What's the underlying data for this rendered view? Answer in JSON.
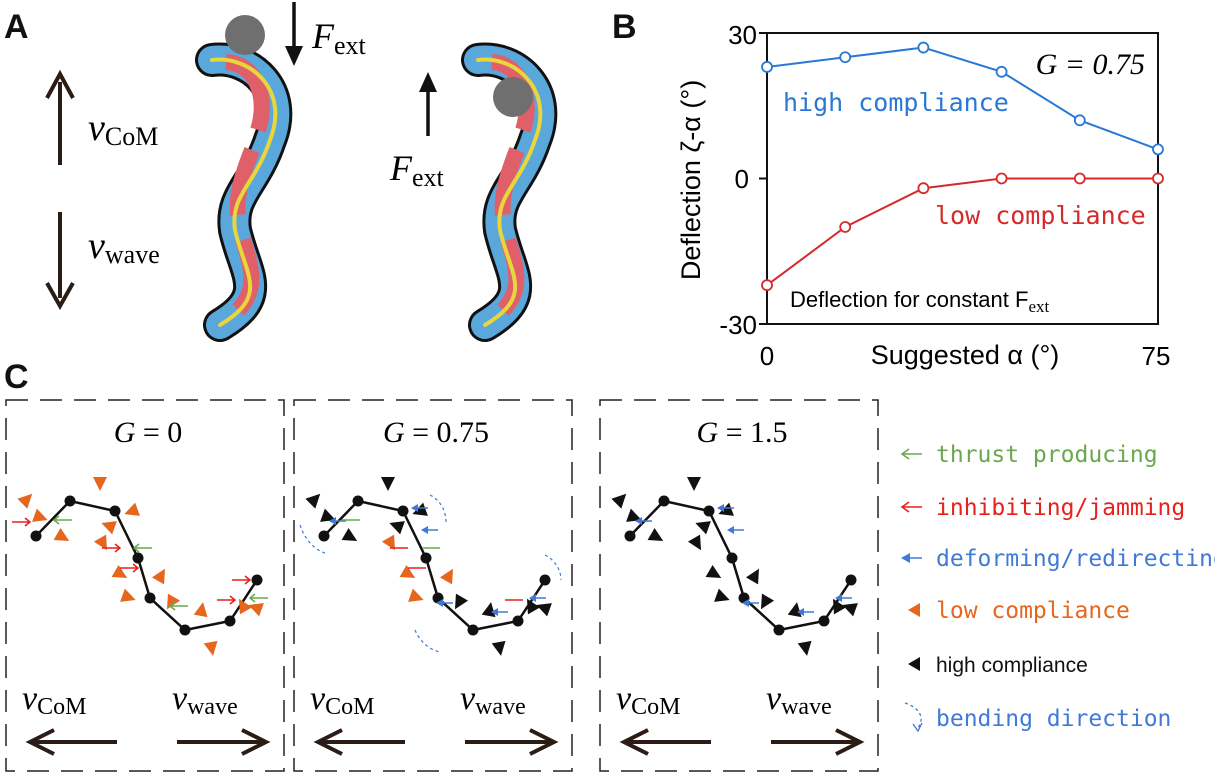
{
  "panel_labels": {
    "a": "A",
    "b": "B",
    "c": "C"
  },
  "panel_a": {
    "v_com": "v",
    "v_com_sub": "CoM",
    "v_wave": "v",
    "v_wave_sub": "wave",
    "f_ext_left": "F",
    "f_ext_left_sub": "ext",
    "f_ext_right": "F",
    "f_ext_right_sub": "ext"
  },
  "chart_data": {
    "type": "line",
    "x": [
      0,
      15,
      30,
      45,
      60,
      75
    ],
    "series": [
      {
        "name": "high compliance",
        "color": "#2a78d6",
        "values": [
          23,
          25,
          27,
          22,
          12,
          6
        ]
      },
      {
        "name": "low compliance",
        "color": "#d42a2a",
        "values": [
          -22,
          -10,
          -2,
          0,
          0,
          0
        ]
      }
    ],
    "ylim": [
      -30,
      30
    ],
    "xlim": [
      0,
      75
    ],
    "yticks": [
      "30",
      "0",
      "-30"
    ],
    "xtick_left": "0",
    "xtick_right": "75",
    "ylabel": "Deflection ζ-α (°)",
    "xlabel": "Suggested α (°)",
    "annotation_g": "G = 0.75",
    "annotation_bottom": "Deflection for constant F",
    "annotation_bottom_sub": "ext",
    "label_high": "high compliance",
    "label_low": "low compliance",
    "grid": false,
    "legend": "inline labels"
  },
  "panel_c": {
    "boxes": [
      {
        "title_var": "G",
        "title_eq": " = 0",
        "v_com": "v",
        "v_com_sub": "CoM",
        "v_wave": "v",
        "v_wave_sub": "wave"
      },
      {
        "title_var": "G",
        "title_eq": " = 0.75",
        "v_com": "v",
        "v_com_sub": "CoM",
        "v_wave": "v",
        "v_wave_sub": "wave"
      },
      {
        "title_var": "G",
        "title_eq": " = 1.5",
        "v_com": "v",
        "v_com_sub": "CoM",
        "v_wave": "v",
        "v_wave_sub": "wave"
      }
    ],
    "legend": [
      {
        "label": "thrust producing",
        "color": "#6aa84f",
        "icon": "thin-arrow-left-icon"
      },
      {
        "label": "inhibiting/jamming",
        "color": "#e8201b",
        "icon": "thin-arrow-left-icon"
      },
      {
        "label": "deforming/redirecting",
        "color": "#3f7ad6",
        "icon": "filled-arrow-left-icon"
      },
      {
        "label": "low compliance",
        "color": "#e6661e",
        "icon": "triangle-left-icon"
      },
      {
        "label": "high compliance",
        "color": "#111111",
        "icon": "triangle-left-icon"
      },
      {
        "label": "bending direction",
        "color": "#3f7ad6",
        "icon": "dashed-curve-arrow-icon"
      }
    ]
  },
  "colors": {
    "body_blue": "#5aa7dc",
    "body_red": "#e0606a",
    "body_yellow": "#e8d63a",
    "ball": "#6f6f6f",
    "dark": "#111111"
  }
}
